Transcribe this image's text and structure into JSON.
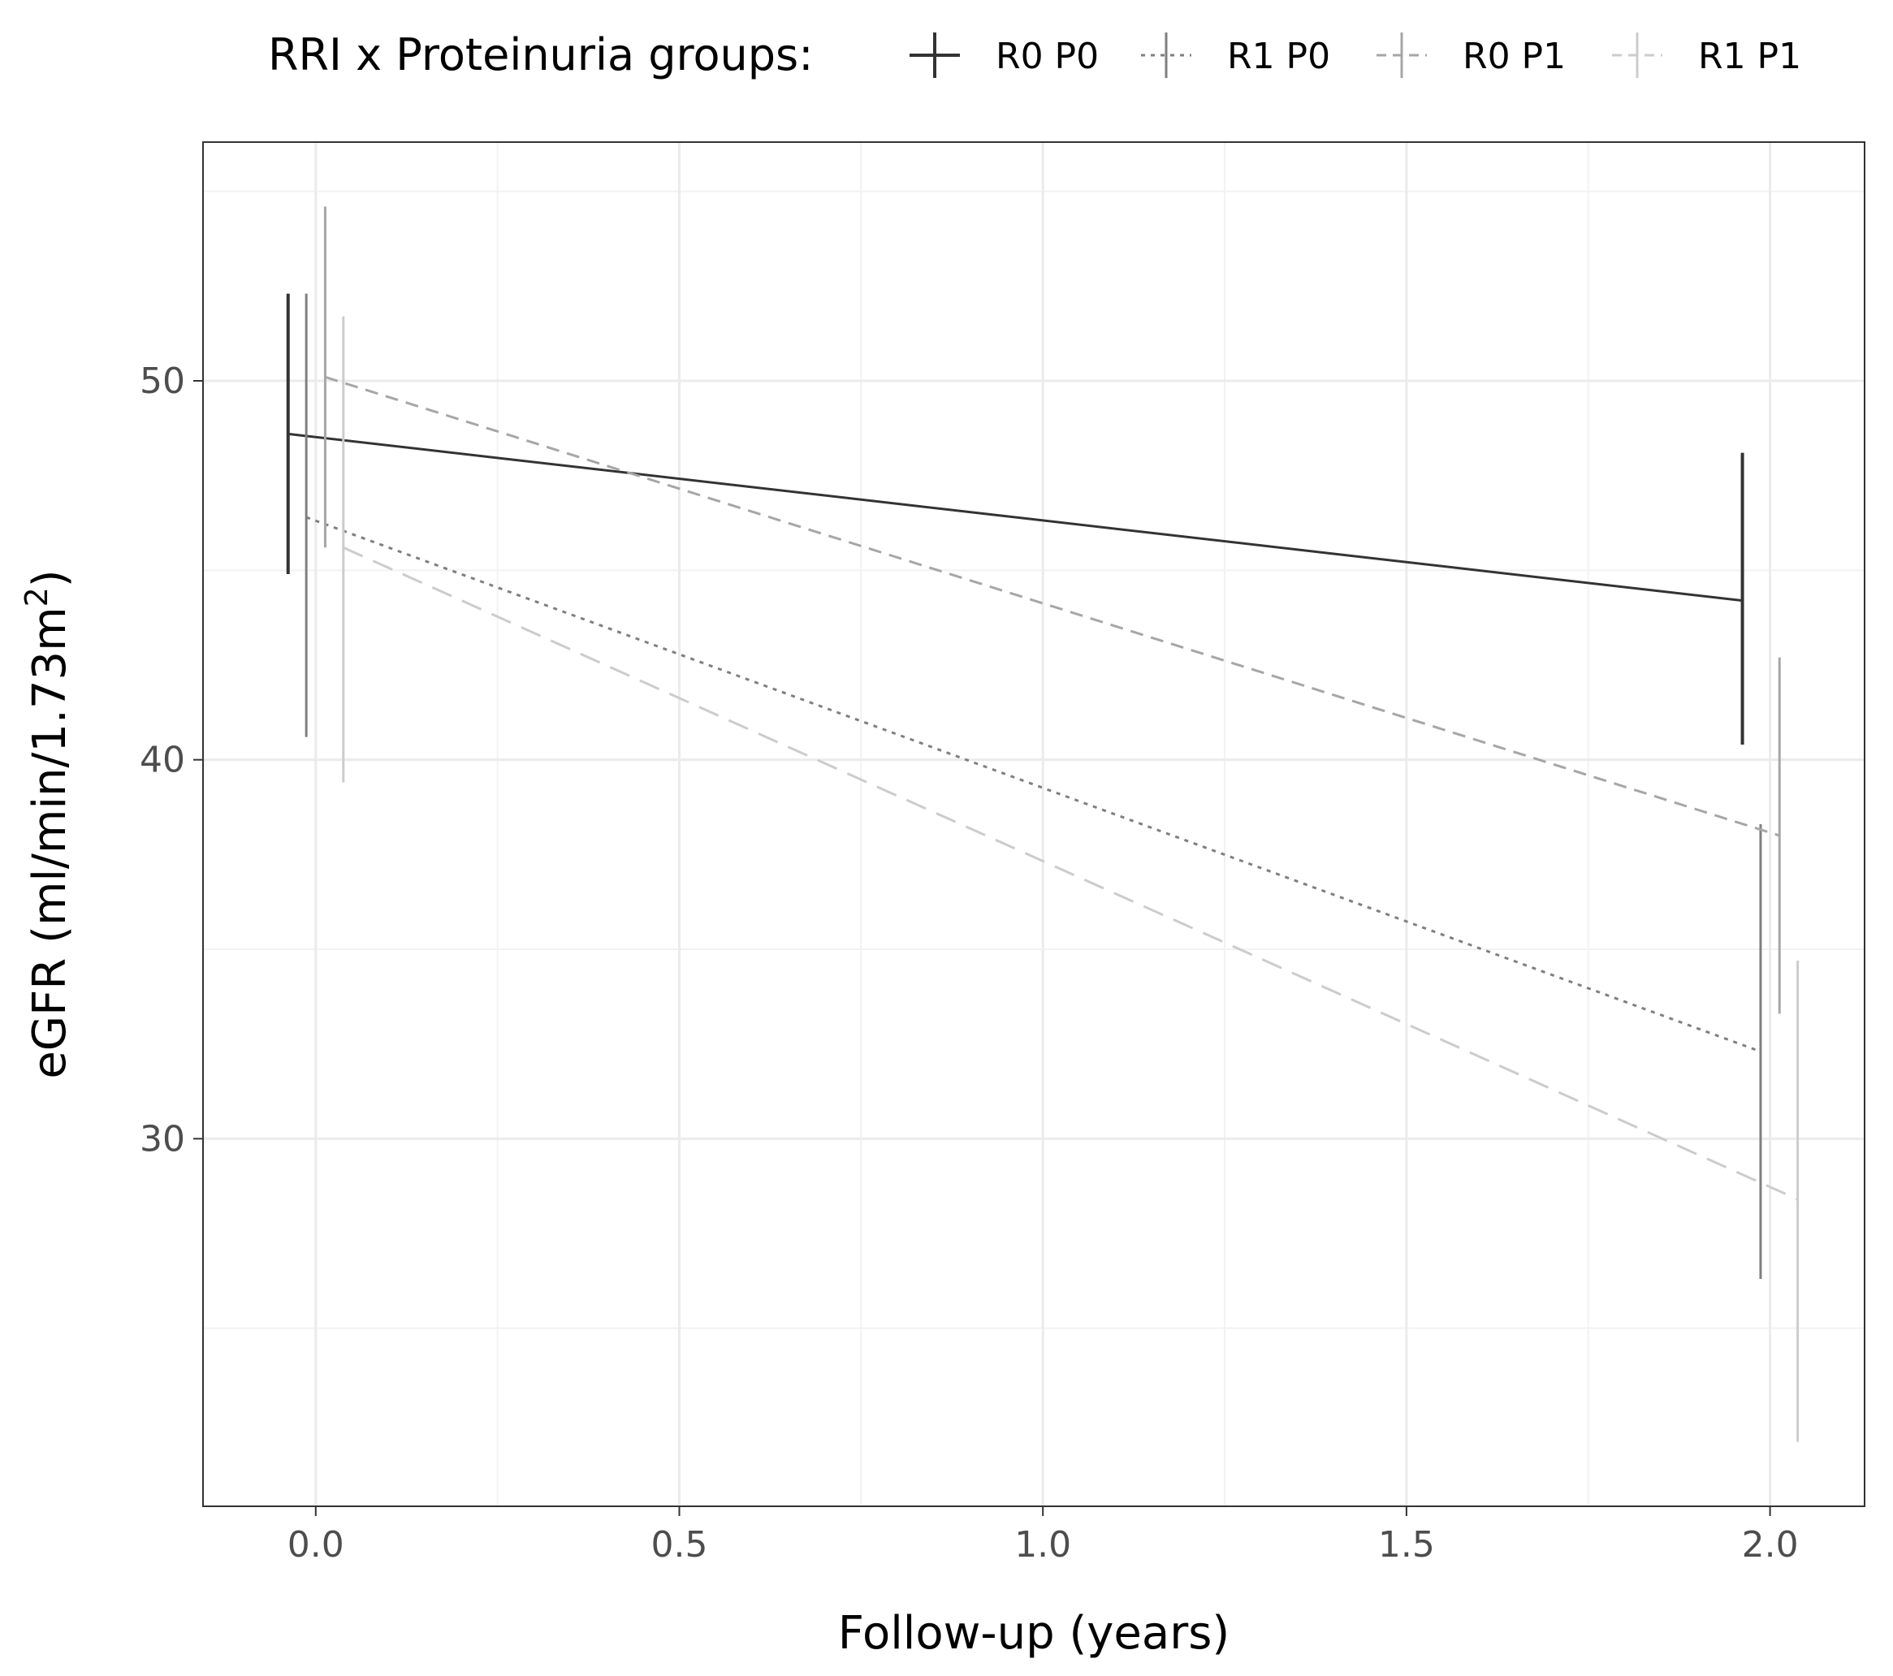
{
  "chart_data": {
    "type": "line",
    "xlabel": "Follow-up (years)",
    "ylabel": "eGFR (ml/min/1.73m",
    "ylabel_superscript": "2",
    "ylabel_close": ")",
    "xlim": [
      -0.155,
      2.13
    ],
    "ylim": [
      20.3,
      56.3
    ],
    "x_ticks": [
      0.0,
      0.5,
      1.0,
      1.5,
      2.0
    ],
    "x_tick_labels": [
      "0.0",
      "0.5",
      "1.0",
      "1.5",
      "2.0"
    ],
    "y_ticks": [
      30,
      40,
      50
    ],
    "y_tick_labels": [
      "30",
      "40",
      "50"
    ],
    "x_minor_ticks": [
      0.25,
      0.75,
      1.25,
      1.75
    ],
    "y_minor_ticks": [
      25,
      35,
      45,
      55
    ],
    "grid": true,
    "legend": {
      "title": "RRI x Proteinuria groups:",
      "position": "top"
    },
    "series": [
      {
        "name": "R0 P0",
        "color": "#333333",
        "dash": "solid",
        "points": [
          {
            "x": -0.038,
            "y": 48.6,
            "lower": 44.9,
            "upper": 52.3
          },
          {
            "x": 1.962,
            "y": 44.2,
            "lower": 40.4,
            "upper": 48.1
          }
        ]
      },
      {
        "name": "R1 P0",
        "color": "#7f7f7f",
        "dash": "dotted",
        "points": [
          {
            "x": -0.013,
            "y": 46.4,
            "lower": 40.6,
            "upper": 52.3
          },
          {
            "x": 1.987,
            "y": 32.3,
            "lower": 26.3,
            "upper": 38.3
          }
        ]
      },
      {
        "name": "R0 P1",
        "color": "#a6a6a6",
        "dash": "dashed",
        "points": [
          {
            "x": 0.013,
            "y": 50.1,
            "lower": 45.6,
            "upper": 54.6
          },
          {
            "x": 2.013,
            "y": 38.0,
            "lower": 33.3,
            "upper": 42.7
          }
        ]
      },
      {
        "name": "R1 P1",
        "color": "#cccccc",
        "dash": "longdash",
        "points": [
          {
            "x": 0.038,
            "y": 45.6,
            "lower": 39.4,
            "upper": 51.7
          },
          {
            "x": 2.038,
            "y": 28.4,
            "lower": 22.0,
            "upper": 34.7
          }
        ]
      }
    ]
  }
}
